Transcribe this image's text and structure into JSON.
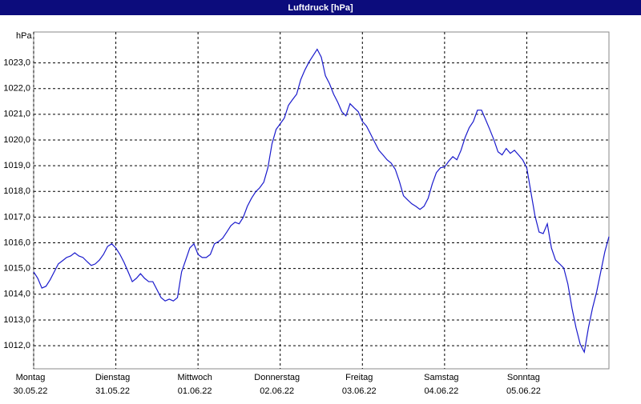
{
  "chart_data": {
    "type": "line",
    "title": "Luftdruck [hPa]",
    "y_label": "hPa",
    "color": "#1a1acc",
    "grid": true,
    "xlim": [
      0,
      168
    ],
    "ylim": [
      1011.1,
      1024.2
    ],
    "yticks": [
      {
        "value": 1012,
        "label": "1012,0"
      },
      {
        "value": 1013,
        "label": "1013,0"
      },
      {
        "value": 1014,
        "label": "1014,0"
      },
      {
        "value": 1015,
        "label": "1015,0"
      },
      {
        "value": 1016,
        "label": "1016,0"
      },
      {
        "value": 1017,
        "label": "1017,0"
      },
      {
        "value": 1018,
        "label": "1018,0"
      },
      {
        "value": 1019,
        "label": "1019,0"
      },
      {
        "value": 1020,
        "label": "1020,0"
      },
      {
        "value": 1021,
        "label": "1021,0"
      },
      {
        "value": 1022,
        "label": "1022,0"
      },
      {
        "value": 1023,
        "label": "1023,0"
      }
    ],
    "xticks": [
      {
        "value": 0,
        "label": "Montag",
        "date": "30.05.22"
      },
      {
        "value": 24,
        "label": "Dienstag",
        "date": "31.05.22"
      },
      {
        "value": 48,
        "label": "Mittwoch",
        "date": "01.06.22"
      },
      {
        "value": 72,
        "label": "Donnerstag",
        "date": "02.06.22"
      },
      {
        "value": 96,
        "label": "Freitag",
        "date": "03.06.22"
      },
      {
        "value": 120,
        "label": "Samstag",
        "date": "04.06.22"
      },
      {
        "value": 144,
        "label": "Sonntag",
        "date": "05.06.22"
      }
    ],
    "x": [
      0,
      1.2,
      2.4,
      3.6,
      4.8,
      6,
      7.2,
      8.4,
      9.6,
      10.8,
      12,
      13.2,
      14.4,
      15.6,
      16.8,
      18,
      19.2,
      20.4,
      21.6,
      22.8,
      24,
      25.2,
      26.4,
      27.6,
      28.8,
      30,
      31.2,
      32.4,
      33.6,
      34.8,
      36,
      37.2,
      38.4,
      39.6,
      40.8,
      42,
      43.2,
      44.4,
      45.6,
      46.8,
      48,
      49.2,
      50.4,
      51.6,
      52.8,
      54,
      55.2,
      56.4,
      57.6,
      58.8,
      60,
      61.2,
      62.4,
      63.6,
      64.8,
      66,
      67.2,
      68.4,
      69.6,
      70.8,
      72,
      73.2,
      74.4,
      75.6,
      76.8,
      78,
      79.2,
      80.4,
      81.6,
      82.8,
      84,
      85.2,
      86.4,
      87.6,
      88.8,
      90,
      91.2,
      92.4,
      93.6,
      94.8,
      96,
      97.2,
      98.4,
      99.6,
      100.8,
      102,
      103.2,
      104.4,
      105.6,
      106.8,
      108,
      109.2,
      110.4,
      111.6,
      112.8,
      114,
      115.2,
      116.4,
      117.6,
      118.8,
      120,
      121.2,
      122.4,
      123.6,
      124.8,
      126,
      127.2,
      128.4,
      129.6,
      130.8,
      132,
      133.2,
      134.4,
      135.6,
      136.8,
      138,
      139.2,
      140.4,
      141.6,
      142.8,
      144,
      145.2,
      146.4,
      147.6,
      148.8,
      150,
      151.2,
      152.4,
      153.6,
      154.8,
      156,
      157.2,
      158.4,
      159.6,
      160.8,
      162,
      163.2,
      164.4,
      165.6,
      166.8,
      168
    ],
    "values": [
      1014.87,
      1014.62,
      1014.24,
      1014.31,
      1014.56,
      1014.87,
      1015.18,
      1015.3,
      1015.43,
      1015.49,
      1015.61,
      1015.49,
      1015.43,
      1015.27,
      1015.12,
      1015.18,
      1015.33,
      1015.55,
      1015.86,
      1015.96,
      1015.8,
      1015.55,
      1015.24,
      1014.87,
      1014.49,
      1014.62,
      1014.8,
      1014.62,
      1014.49,
      1014.49,
      1014.18,
      1013.87,
      1013.74,
      1013.81,
      1013.74,
      1013.87,
      1014.87,
      1015.33,
      1015.8,
      1015.96,
      1015.55,
      1015.43,
      1015.43,
      1015.55,
      1015.96,
      1016.05,
      1016.18,
      1016.42,
      1016.67,
      1016.8,
      1016.74,
      1016.99,
      1017.42,
      1017.73,
      1017.98,
      1018.14,
      1018.36,
      1018.92,
      1019.85,
      1020.41,
      1020.63,
      1020.85,
      1021.35,
      1021.57,
      1021.78,
      1022.35,
      1022.72,
      1023.03,
      1023.28,
      1023.53,
      1023.22,
      1022.5,
      1022.19,
      1021.78,
      1021.47,
      1021.1,
      1020.94,
      1021.41,
      1021.25,
      1021.1,
      1020.72,
      1020.54,
      1020.23,
      1019.91,
      1019.6,
      1019.42,
      1019.23,
      1019.1,
      1018.86,
      1018.39,
      1017.83,
      1017.67,
      1017.52,
      1017.42,
      1017.3,
      1017.42,
      1017.73,
      1018.29,
      1018.73,
      1018.92,
      1018.95,
      1019.17,
      1019.35,
      1019.23,
      1019.6,
      1020.1,
      1020.48,
      1020.72,
      1021.16,
      1021.16,
      1020.79,
      1020.41,
      1020.01,
      1019.54,
      1019.42,
      1019.67,
      1019.48,
      1019.6,
      1019.42,
      1019.23,
      1018.92,
      1017.98,
      1017.05,
      1016.42,
      1016.36,
      1016.74,
      1015.8,
      1015.33,
      1015.18,
      1015.02,
      1014.4,
      1013.46,
      1012.69,
      1012.06,
      1011.75,
      1012.69,
      1013.46,
      1014.09,
      1014.87,
      1015.65,
      1016.24
    ]
  }
}
